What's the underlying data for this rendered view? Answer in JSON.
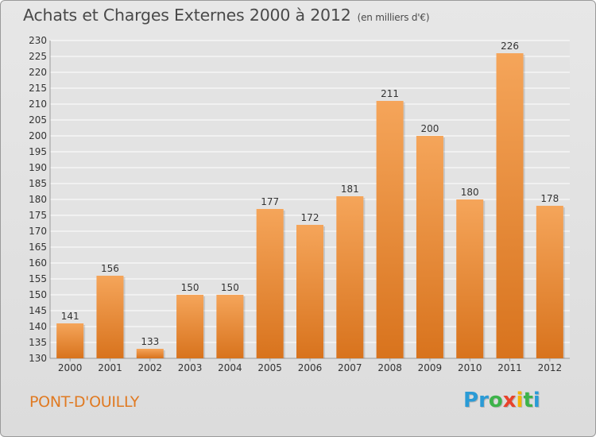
{
  "header": {
    "title": "Achats et Charges Externes 2000 à 2012",
    "unit": "(en milliers d'€)"
  },
  "footer": {
    "town": "PONT-D'OUILLY",
    "logo": {
      "letters": [
        "P",
        "r",
        "o",
        "x",
        "i",
        "t",
        "i"
      ],
      "letter_colors": [
        "#2a9bd6",
        "#2a9bd6",
        "#3db34a",
        "#e8432b",
        "#f4b400",
        "#3db34a",
        "#2a9bd6"
      ]
    }
  },
  "colors": {
    "bar_top": "#f5a55a",
    "bar_bottom": "#d8731d",
    "grid": "#ffffff",
    "text": "#333333",
    "town": "#e07a22"
  },
  "chart_data": {
    "type": "bar",
    "title": "Achats et Charges Externes 2000 à 2012",
    "subtitle": "(en milliers d'€)",
    "categories": [
      "2000",
      "2001",
      "2002",
      "2003",
      "2004",
      "2005",
      "2006",
      "2007",
      "2008",
      "2009",
      "2010",
      "2011",
      "2012"
    ],
    "values": [
      141,
      156,
      133,
      150,
      150,
      177,
      172,
      181,
      211,
      200,
      180,
      226,
      178
    ],
    "ylim": [
      130,
      230
    ],
    "yticks": [
      130,
      135,
      140,
      145,
      150,
      155,
      160,
      165,
      170,
      175,
      180,
      185,
      190,
      195,
      200,
      205,
      210,
      215,
      220,
      225,
      230
    ],
    "grid": true,
    "xlabel": "",
    "ylabel": ""
  }
}
